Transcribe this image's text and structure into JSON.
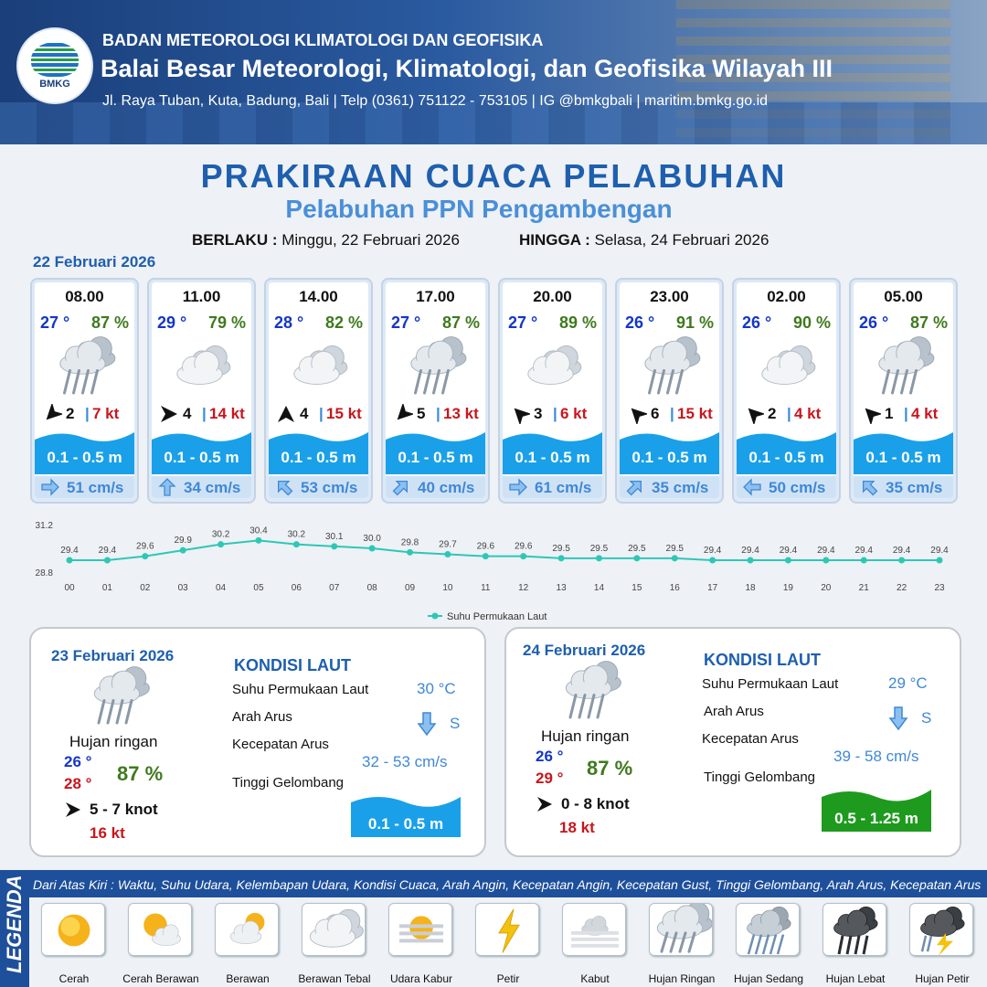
{
  "header": {
    "logo_text": "BMKG",
    "agency": "BADAN METEOROLOGI KLIMATOLOGI DAN GEOFISIKA",
    "office": "Balai Besar Meteorologi, Klimatologi, dan Geofisika Wilayah III",
    "address": "Jl. Raya Tuban, Kuta, Badung, Bali | Telp (0361) 751122 - 753105 | IG @bmkgbali | maritim.bmkg.go.id"
  },
  "title": "PRAKIRAAN CUACA PELABUHAN",
  "subtitle": "Pelabuhan PPN Pengambengan",
  "period": {
    "from_label": "BERLAKU :",
    "from_value": "Minggu, 22 Februari 2026",
    "to_label": "HINGGA :",
    "to_value": "Selasa, 24 Februari 2026"
  },
  "today_label": "22 Februari 2026",
  "hourly": [
    {
      "time": "08.00",
      "temp": "27 °",
      "hum": "87 %",
      "icon": "hujan-ringan-icon",
      "wind_dir_deg": 225,
      "wind_speed": "2",
      "gust": "7 kt",
      "wave": "0.1 - 0.5 m",
      "current_dir_deg": 90,
      "current_speed": "51 cm/s"
    },
    {
      "time": "11.00",
      "temp": "29 °",
      "hum": "79 %",
      "icon": "berawan-tebal-icon",
      "wind_dir_deg": 90,
      "wind_speed": "4",
      "gust": "14 kt",
      "wave": "0.1 - 0.5 m",
      "current_dir_deg": 0,
      "current_speed": "34 cm/s"
    },
    {
      "time": "14.00",
      "temp": "28 °",
      "hum": "82 %",
      "icon": "berawan-tebal-icon",
      "wind_dir_deg": 0,
      "wind_speed": "4",
      "gust": "15 kt",
      "wave": "0.1 - 0.5 m",
      "current_dir_deg": 315,
      "current_speed": "53 cm/s"
    },
    {
      "time": "17.00",
      "temp": "27 °",
      "hum": "87 %",
      "icon": "hujan-ringan-icon",
      "wind_dir_deg": 225,
      "wind_speed": "5",
      "gust": "13 kt",
      "wave": "0.1 - 0.5 m",
      "current_dir_deg": 45,
      "current_speed": "40 cm/s"
    },
    {
      "time": "20.00",
      "temp": "27 °",
      "hum": "89 %",
      "icon": "berawan-tebal-icon",
      "wind_dir_deg": 315,
      "wind_speed": "3",
      "gust": "6 kt",
      "wave": "0.1 - 0.5 m",
      "current_dir_deg": 90,
      "current_speed": "61 cm/s"
    },
    {
      "time": "23.00",
      "temp": "26 °",
      "hum": "91 %",
      "icon": "hujan-ringan-icon",
      "wind_dir_deg": 315,
      "wind_speed": "6",
      "gust": "15 kt",
      "wave": "0.1 - 0.5 m",
      "current_dir_deg": 45,
      "current_speed": "35 cm/s"
    },
    {
      "time": "02.00",
      "temp": "26 °",
      "hum": "90 %",
      "icon": "berawan-tebal-icon",
      "wind_dir_deg": 315,
      "wind_speed": "2",
      "gust": "4 kt",
      "wave": "0.1 - 0.5 m",
      "current_dir_deg": 270,
      "current_speed": "50 cm/s"
    },
    {
      "time": "05.00",
      "temp": "26 °",
      "hum": "87 %",
      "icon": "hujan-ringan-icon",
      "wind_dir_deg": 315,
      "wind_speed": "1",
      "gust": "4 kt",
      "wave": "0.1 - 0.5 m",
      "current_dir_deg": 315,
      "current_speed": "35 cm/s"
    }
  ],
  "chart_data": {
    "type": "line",
    "x": [
      "00",
      "01",
      "02",
      "03",
      "04",
      "05",
      "06",
      "07",
      "08",
      "09",
      "10",
      "11",
      "12",
      "13",
      "14",
      "15",
      "16",
      "17",
      "18",
      "19",
      "20",
      "21",
      "22",
      "23"
    ],
    "series": [
      {
        "name": "Suhu Permukaan Laut",
        "values": [
          29.4,
          29.4,
          29.6,
          29.9,
          30.2,
          30.4,
          30.2,
          30.1,
          30.0,
          29.8,
          29.7,
          29.6,
          29.6,
          29.5,
          29.5,
          29.5,
          29.5,
          29.4,
          29.4,
          29.4,
          29.4,
          29.4,
          29.4,
          29.4
        ]
      }
    ],
    "value_labels": [
      "29.4",
      "29.4",
      "29.6",
      "29.9",
      "30.2",
      "30.4",
      "30.2",
      "30.1",
      "30.0",
      "29.8",
      "29.7",
      "29.6",
      "29.6",
      "29.5",
      "29.5",
      "29.5",
      "29.5",
      "29.4",
      "29.4",
      "29.4",
      "29.4",
      "29.4",
      "29.4",
      "29.4"
    ],
    "ylim": [
      28.8,
      31.2
    ],
    "ytick_labels": [
      "31.2",
      "28.8"
    ],
    "color": "#2ec7b6",
    "legend": "bottom-center"
  },
  "days": [
    {
      "date": "23 Februari 2026",
      "condition": "Hujan ringan",
      "icon": "hujan-ringan-icon",
      "tmin": "26 °",
      "tmax": "28 °",
      "hum": "87 %",
      "wind": "5  - 7 knot",
      "gust": "16 kt",
      "sea_heading": "KONDISI LAUT",
      "sst_label": "Suhu Permukaan Laut",
      "sst_value": "30 °C",
      "current_dir_label": "Arah Arus",
      "current_dir_value": "S",
      "current_speed_label": "Kecepatan Arus",
      "current_speed_value": "32 - 53 cm/s",
      "wave_label": "Tinggi Gelombang",
      "wave_value": "0.1 - 0.5 m",
      "wave_color": "#1aa0e8"
    },
    {
      "date": "24 Februari 2026",
      "condition": "Hujan ringan",
      "icon": "hujan-ringan-icon",
      "tmin": "26 °",
      "tmax": "29 °",
      "hum": "87 %",
      "wind": "0  - 8 knot",
      "gust": "18 kt",
      "sea_heading": "KONDISI LAUT",
      "sst_label": "Suhu Permukaan Laut",
      "sst_value": "29 °C",
      "current_dir_label": "Arah Arus",
      "current_dir_value": "S",
      "current_speed_label": "Kecepatan Arus",
      "current_speed_value": "39 - 58 cm/s",
      "wave_label": "Tinggi Gelombang",
      "wave_value": "0.5 - 1.25 m",
      "wave_color": "#1e9a1e"
    }
  ],
  "legend": {
    "title": "LEGENDA",
    "description": "Dari Atas Kiri : Waktu, Suhu Udara, Kelembapan Udara, Kondisi Cuaca, Arah Angin, Kecepatan Angin, Kecepatan Gust, Tinggi Gelombang, Arah Arus, Kecepatan Arus",
    "items": [
      {
        "label": "Cerah",
        "icon": "cerah-icon"
      },
      {
        "label": "Cerah Berawan",
        "icon": "cerah-berawan-icon"
      },
      {
        "label": "Berawan",
        "icon": "berawan-icon"
      },
      {
        "label": "Berawan Tebal",
        "icon": "berawan-tebal-icon"
      },
      {
        "label": "Udara Kabur",
        "icon": "udara-kabur-icon"
      },
      {
        "label": "Petir",
        "icon": "petir-icon"
      },
      {
        "label": "Kabut",
        "icon": "kabut-icon"
      },
      {
        "label": "Hujan Ringan",
        "icon": "hujan-ringan-icon"
      },
      {
        "label": "Hujan Sedang",
        "icon": "hujan-sedang-icon"
      },
      {
        "label": "Hujan Lebat",
        "icon": "hujan-lebat-icon"
      },
      {
        "label": "Hujan Petir",
        "icon": "hujan-petir-icon"
      }
    ]
  }
}
